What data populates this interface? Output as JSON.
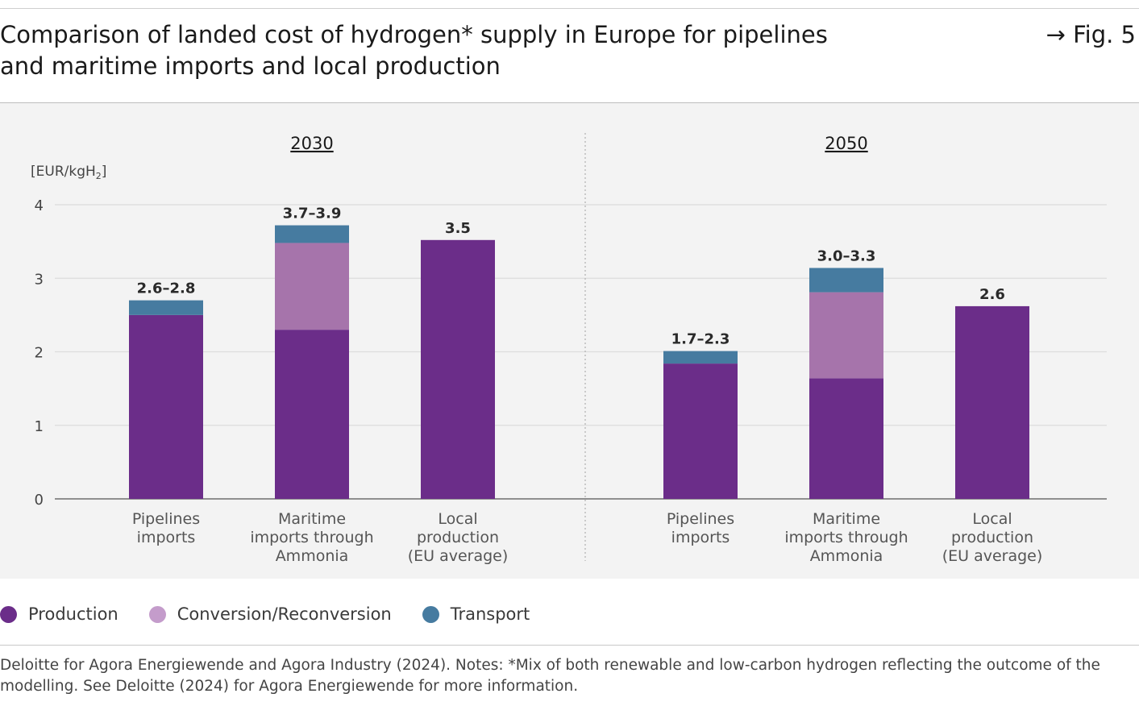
{
  "header": {
    "title_line1": "Comparison of landed cost of hydrogen* supply in Europe for pipelines",
    "title_line2": "and maritime imports and local production",
    "fig_ref": "→ Fig. 5"
  },
  "colors": {
    "production": "#6b2d89",
    "conversion": "#a674ab",
    "transport": "#467ba0",
    "legend_conversion": "#c49ccb"
  },
  "legend": [
    {
      "label": "Production",
      "color": "#6b2d89"
    },
    {
      "label": "Conversion/Reconversion",
      "color": "#c49ccb"
    },
    {
      "label": "Transport",
      "color": "#467ba0"
    }
  ],
  "source": "Deloitte for Agora Energiewende and Agora Industry (2024). Notes: *Mix of both renewable and low-carbon hydrogen reflecting the outcome of the modelling. See Deloitte (2024) for Agora Energiewende for more information.",
  "chart_data": {
    "type": "bar",
    "stacked": true,
    "ylabel": "[EUR/kgH2]",
    "ylim": [
      0,
      4
    ],
    "yticks": [
      0,
      1,
      2,
      3,
      4
    ],
    "grid": true,
    "legend_position": "bottom-left",
    "series_names": [
      "Production",
      "Conversion/Reconversion",
      "Transport"
    ],
    "groups": [
      {
        "title": "2030",
        "bars": [
          {
            "category": [
              "Pipelines",
              "imports"
            ],
            "production": 2.5,
            "conversion": 0,
            "transport": 0.2,
            "label": "2.6–2.8"
          },
          {
            "category": [
              "Maritime",
              "imports through",
              "Ammonia"
            ],
            "production": 2.3,
            "conversion": 1.18,
            "transport": 0.24,
            "label": "3.7–3.9"
          },
          {
            "category": [
              "Local",
              "production",
              "(EU average)"
            ],
            "production": 3.52,
            "conversion": 0,
            "transport": 0,
            "label": "3.5"
          }
        ]
      },
      {
        "title": "2050",
        "bars": [
          {
            "category": [
              "Pipelines",
              "imports"
            ],
            "production": 1.84,
            "conversion": 0,
            "transport": 0.17,
            "label": "1.7–2.3"
          },
          {
            "category": [
              "Maritime",
              "imports through",
              "Ammonia"
            ],
            "production": 1.64,
            "conversion": 1.17,
            "transport": 0.33,
            "label": "3.0–3.3"
          },
          {
            "category": [
              "Local",
              "production",
              "(EU average)"
            ],
            "production": 2.62,
            "conversion": 0,
            "transport": 0,
            "label": "2.6"
          }
        ]
      }
    ]
  }
}
